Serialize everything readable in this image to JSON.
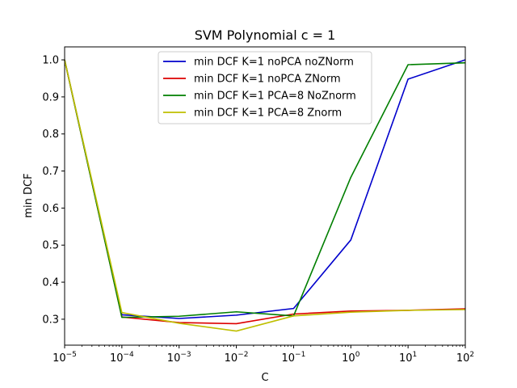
{
  "chart_data": {
    "type": "line",
    "title": "SVM Polynomial c = 1",
    "xlabel": "C",
    "ylabel": "min DCF",
    "xscale": "log",
    "xlim": [
      1e-05,
      100
    ],
    "ylim": [
      0.23,
      1.035
    ],
    "grid": false,
    "legend_position": "top-center",
    "x": [
      1e-05,
      0.0001,
      0.001,
      0.01,
      0.1,
      1,
      10,
      100
    ],
    "x_ticks": [
      {
        "value": 1e-05,
        "base": "10",
        "exp": "−5"
      },
      {
        "value": 0.0001,
        "base": "10",
        "exp": "−4"
      },
      {
        "value": 0.001,
        "base": "10",
        "exp": "−3"
      },
      {
        "value": 0.01,
        "base": "10",
        "exp": "−2"
      },
      {
        "value": 0.1,
        "base": "10",
        "exp": "−1"
      },
      {
        "value": 1,
        "base": "10",
        "exp": "0"
      },
      {
        "value": 10,
        "base": "10",
        "exp": "1"
      },
      {
        "value": 100,
        "base": "10",
        "exp": "2"
      }
    ],
    "y_ticks": [
      {
        "value": 0.3,
        "label": "0.3"
      },
      {
        "value": 0.4,
        "label": "0.4"
      },
      {
        "value": 0.5,
        "label": "0.5"
      },
      {
        "value": 0.6,
        "label": "0.6"
      },
      {
        "value": 0.7,
        "label": "0.7"
      },
      {
        "value": 0.8,
        "label": "0.8"
      },
      {
        "value": 0.9,
        "label": "0.9"
      },
      {
        "value": 1.0,
        "label": "1.0"
      }
    ],
    "series": [
      {
        "name": "min DCF K=1 noPCA noZNorm",
        "color": "#0000cc",
        "values": [
          1.0,
          0.312,
          0.302,
          0.311,
          0.329,
          0.514,
          0.948,
          1.0
        ]
      },
      {
        "name": "min DCF K=1 noPCA ZNorm",
        "color": "#dd0000",
        "values": [
          1.0,
          0.306,
          0.291,
          0.288,
          0.314,
          0.322,
          0.324,
          0.328
        ]
      },
      {
        "name": "min DCF K=1 PCA=8 NoZnorm",
        "color": "#007f00",
        "values": [
          1.0,
          0.305,
          0.308,
          0.32,
          0.309,
          0.683,
          0.987,
          0.992
        ]
      },
      {
        "name": "min DCF K=1 PCA=8 Znorm",
        "color": "#bfbf00",
        "values": [
          1.0,
          0.318,
          0.289,
          0.268,
          0.309,
          0.319,
          0.324,
          0.326
        ]
      }
    ]
  }
}
